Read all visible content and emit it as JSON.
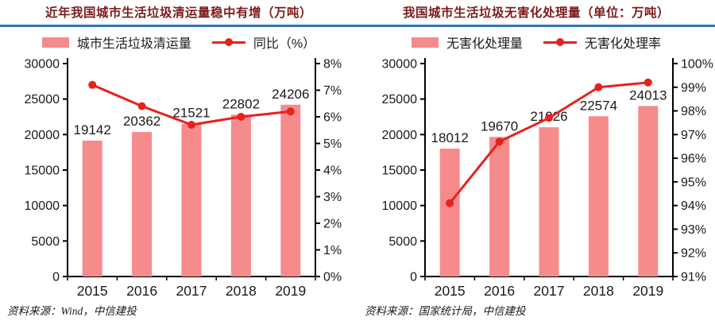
{
  "colors": {
    "bar": "#F58B8B",
    "line": "#E8211D",
    "title": "#7E1A1A",
    "rule": "#2E75B6",
    "axis": "#000000",
    "text": "#1a1a1a"
  },
  "chart_data": [
    {
      "type": "bar+line",
      "title": "近年我国城市生活垃圾清运量稳中有增（万吨）",
      "categories": [
        "2015",
        "2016",
        "2017",
        "2018",
        "2019"
      ],
      "series": [
        {
          "name": "城市生活垃圾清运量",
          "type": "bar",
          "axis": "left",
          "values": [
            19142,
            20362,
            21521,
            22802,
            24206
          ]
        },
        {
          "name": "同比（%）",
          "type": "line",
          "axis": "right",
          "values": [
            7.2,
            6.4,
            5.7,
            6.0,
            6.2
          ]
        }
      ],
      "left_axis": {
        "min": 0,
        "max": 30000,
        "step": 5000,
        "tick_labels": [
          "0",
          "5000",
          "10000",
          "15000",
          "20000",
          "25000",
          "30000"
        ]
      },
      "right_axis": {
        "min": 0,
        "max": 8,
        "step": 1,
        "tick_labels": [
          "0%",
          "1%",
          "2%",
          "3%",
          "4%",
          "5%",
          "6%",
          "7%",
          "8%"
        ]
      },
      "legend_position": "top",
      "grid": false,
      "source": "资料来源：Wind，中信建投"
    },
    {
      "type": "bar+line",
      "title": "我国城市生活垃圾无害化处理量（单位：万吨）",
      "categories": [
        "2015",
        "2016",
        "2017",
        "2018",
        "2019"
      ],
      "series": [
        {
          "name": "无害化处理量",
          "type": "bar",
          "axis": "left",
          "values": [
            18012,
            19670,
            21026,
            22574,
            24013
          ]
        },
        {
          "name": "无害化处理率",
          "type": "line",
          "axis": "right",
          "values": [
            94.1,
            96.7,
            97.7,
            99.0,
            99.2
          ]
        }
      ],
      "left_axis": {
        "min": 0,
        "max": 30000,
        "step": 5000,
        "tick_labels": [
          "0",
          "5000",
          "10000",
          "15000",
          "20000",
          "25000",
          "30000"
        ]
      },
      "right_axis": {
        "min": 91,
        "max": 100,
        "step": 1,
        "tick_labels": [
          "91%",
          "92%",
          "93%",
          "94%",
          "95%",
          "96%",
          "97%",
          "98%",
          "99%",
          "100%"
        ]
      },
      "legend_position": "top",
      "grid": false,
      "source": "资料来源：国家统计局，中信建投"
    }
  ]
}
